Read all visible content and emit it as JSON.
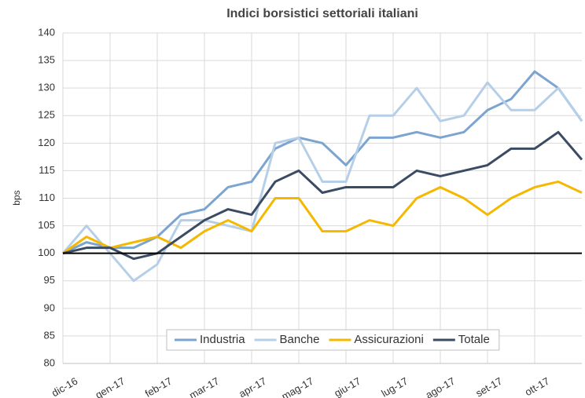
{
  "chart_data": {
    "type": "line",
    "title": "Indici borsistici settoriali italiani",
    "y_label": "bps",
    "categories": [
      "dic-16",
      null,
      "gen-17",
      null,
      "feb-17",
      null,
      "mar-17",
      null,
      "apr-17",
      null,
      "mag-17",
      null,
      "giu-17",
      null,
      "lug-17",
      null,
      "ago-17",
      null,
      "set-17",
      null,
      "ott-17",
      null,
      null
    ],
    "series": [
      {
        "name": "Industria",
        "color": "#7ba4d0",
        "values": [
          100,
          102,
          101,
          101,
          103,
          107,
          108,
          112,
          113,
          119,
          121,
          120,
          116,
          121,
          121,
          122,
          121,
          122,
          126,
          128,
          133,
          130,
          124
        ]
      },
      {
        "name": "Banche",
        "color": "#b6cfe8",
        "values": [
          100,
          105,
          100,
          95,
          98,
          106,
          106,
          105,
          104,
          120,
          121,
          113,
          113,
          125,
          125,
          130,
          124,
          125,
          131,
          126,
          126,
          130,
          124
        ]
      },
      {
        "name": "Assicurazioni",
        "color": "#f5b800",
        "values": [
          100,
          103,
          101,
          102,
          103,
          101,
          104,
          106,
          104,
          110,
          110,
          104,
          104,
          106,
          105,
          110,
          112,
          110,
          107,
          110,
          112,
          113,
          111
        ]
      },
      {
        "name": "Totale",
        "color": "#3b4b62",
        "values": [
          100,
          101,
          101,
          99,
          100,
          103,
          106,
          108,
          107,
          113,
          115,
          111,
          112,
          112,
          112,
          115,
          114,
          115,
          116,
          119,
          119,
          122,
          117
        ]
      }
    ],
    "reference_line": 100,
    "ylim": [
      80,
      140
    ],
    "yticks": [
      80,
      85,
      90,
      95,
      100,
      105,
      110,
      115,
      120,
      125,
      130,
      135,
      140
    ],
    "grid": true,
    "legend": "bottom"
  }
}
